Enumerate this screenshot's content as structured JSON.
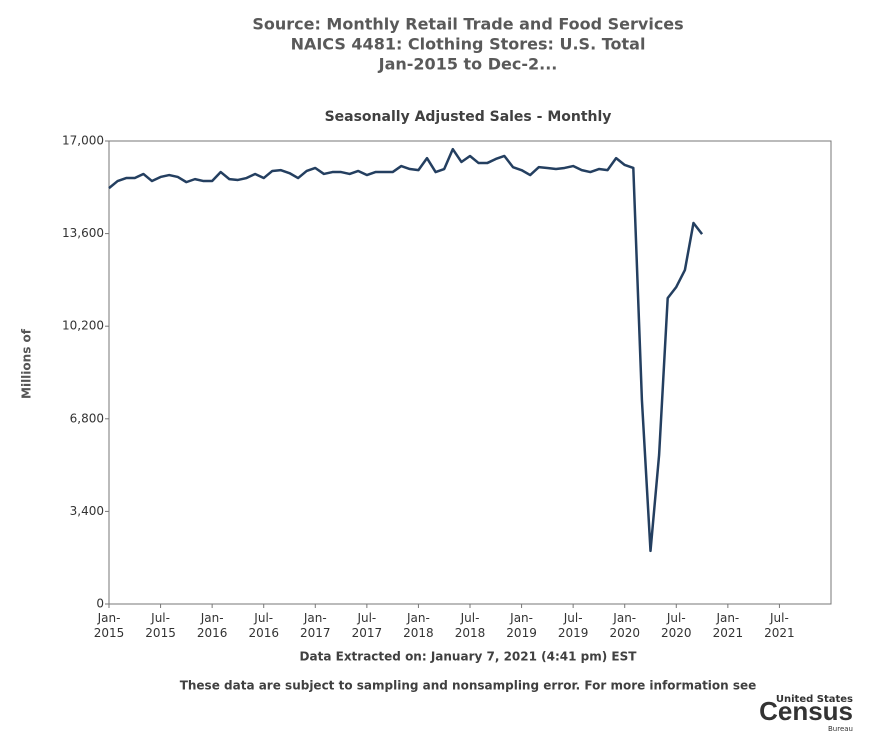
{
  "chart_data": {
    "type": "line",
    "title_lines": [
      "Source: Monthly Retail Trade and Food Services",
      "NAICS 4481: Clothing Stores: U.S. Total",
      "Jan-2015 to Dec-2..."
    ],
    "subtitle": "Seasonally Adjusted Sales - Monthly",
    "y_label": "Millions of",
    "footnotes": [
      "Data Extracted on: January 7, 2021 (4:41 pm) EST",
      "These data are subject to sampling and nonsampling error. For more information see"
    ],
    "logo": {
      "top": "United States",
      "main": "Census",
      "bottom": "Bureau"
    },
    "x": [
      "2015-01",
      "2015-02",
      "2015-03",
      "2015-04",
      "2015-05",
      "2015-06",
      "2015-07",
      "2015-08",
      "2015-09",
      "2015-10",
      "2015-11",
      "2015-12",
      "2016-01",
      "2016-02",
      "2016-03",
      "2016-04",
      "2016-05",
      "2016-06",
      "2016-07",
      "2016-08",
      "2016-09",
      "2016-10",
      "2016-11",
      "2016-12",
      "2017-01",
      "2017-02",
      "2017-03",
      "2017-04",
      "2017-05",
      "2017-06",
      "2017-07",
      "2017-08",
      "2017-09",
      "2017-10",
      "2017-11",
      "2017-12",
      "2018-01",
      "2018-02",
      "2018-03",
      "2018-04",
      "2018-05",
      "2018-06",
      "2018-07",
      "2018-08",
      "2018-09",
      "2018-10",
      "2018-11",
      "2018-12",
      "2019-01",
      "2019-02",
      "2019-03",
      "2019-04",
      "2019-05",
      "2019-06",
      "2019-07",
      "2019-08",
      "2019-09",
      "2019-10",
      "2019-11",
      "2019-12",
      "2020-01",
      "2020-02",
      "2020-03",
      "2020-04",
      "2020-05",
      "2020-06",
      "2020-07",
      "2020-08",
      "2020-09",
      "2020-10"
    ],
    "series": [
      {
        "name": "Seasonally Adjusted Sales",
        "color": "#243f60",
        "values": [
          15270,
          15530,
          15640,
          15640,
          15790,
          15530,
          15680,
          15750,
          15680,
          15490,
          15600,
          15530,
          15530,
          15860,
          15600,
          15570,
          15640,
          15790,
          15640,
          15900,
          15930,
          15820,
          15640,
          15900,
          16010,
          15790,
          15860,
          15860,
          15790,
          15900,
          15750,
          15860,
          15860,
          15860,
          16080,
          15970,
          15930,
          16370,
          15860,
          15970,
          16700,
          16230,
          16450,
          16190,
          16190,
          16340,
          16450,
          16040,
          15930,
          15750,
          16040,
          16010,
          15970,
          16010,
          16080,
          15930,
          15860,
          15970,
          15930,
          16370,
          16120,
          16010,
          7490,
          1950,
          5470,
          11230,
          11640,
          12260,
          13990,
          13580
        ]
      }
    ],
    "xlim": [
      "2015-01",
      "2022-01"
    ],
    "xticks": [
      {
        "value": "2015-01",
        "label": "Jan-2015"
      },
      {
        "value": "2015-07",
        "label": "Jul-2015"
      },
      {
        "value": "2016-01",
        "label": "Jan-2016"
      },
      {
        "value": "2016-07",
        "label": "Jul-2016"
      },
      {
        "value": "2017-01",
        "label": "Jan-2017"
      },
      {
        "value": "2017-07",
        "label": "Jul-2017"
      },
      {
        "value": "2018-01",
        "label": "Jan-2018"
      },
      {
        "value": "2018-07",
        "label": "Jul-2018"
      },
      {
        "value": "2019-01",
        "label": "Jan-2019"
      },
      {
        "value": "2019-07",
        "label": "Jul-2019"
      },
      {
        "value": "2020-01",
        "label": "Jan-2020"
      },
      {
        "value": "2020-07",
        "label": "Jul-2020"
      },
      {
        "value": "2021-01",
        "label": "Jan-2021"
      },
      {
        "value": "2021-07",
        "label": "Jul-2021"
      }
    ],
    "ylim": [
      0,
      17000
    ],
    "yticks": [
      0,
      {
        "value": 3400,
        "label": "3,400"
      },
      {
        "value": 6800,
        "label": "6,800"
      },
      {
        "value": 10200,
        "label": "10,200"
      },
      {
        "value": 13600,
        "label": "13,600"
      },
      {
        "value": 17000,
        "label": "17,000"
      }
    ],
    "grid": false
  }
}
